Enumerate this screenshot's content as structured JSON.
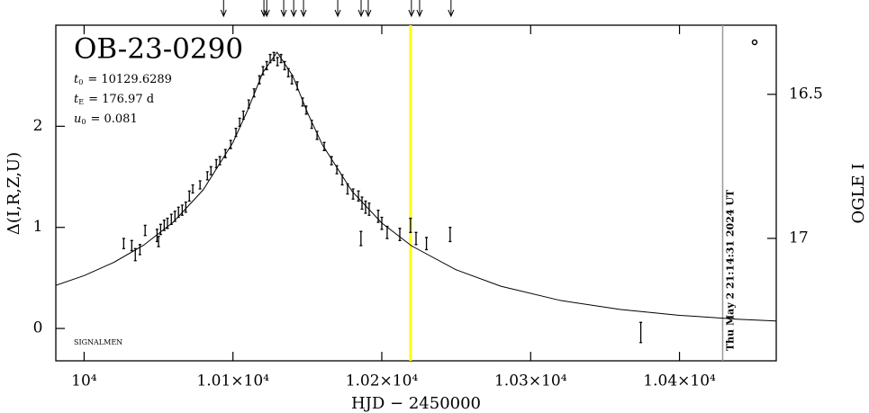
{
  "chart_data": {
    "type": "scatter",
    "title": "OB-23-0290",
    "x_label": "HJD − 2450000",
    "y_label": "Δ(I,R,Z,U)",
    "y2_label": "OGLE I",
    "corner_note": "SIGNALMEN",
    "timestamp": "Thu May  2 21:14:31 2024 UT",
    "params": [
      {
        "symbol": "t",
        "sub": "0",
        "text": "= 10129.6289"
      },
      {
        "symbol": "t",
        "sub": "E",
        "text": "= 176.97 d"
      },
      {
        "symbol": "u",
        "sub": "0",
        "text": "= 0.081"
      }
    ],
    "xlim": [
      9981,
      10465
    ],
    "ylim": [
      -0.32,
      3.0
    ],
    "y2lim": [
      17.425,
      16.26
    ],
    "xticks": [
      {
        "value": 10000,
        "label": "10⁴"
      },
      {
        "value": 10100,
        "label": "1.01×10⁴"
      },
      {
        "value": 10200,
        "label": "1.02×10⁴"
      },
      {
        "value": 10300,
        "label": "1.03×10⁴"
      },
      {
        "value": 10400,
        "label": "1.04×10⁴"
      }
    ],
    "yticks": [
      0,
      1,
      2
    ],
    "y2ticks": [
      16.5,
      17
    ],
    "arrows_x": [
      10093.7,
      10120.8,
      10122.7,
      10134.1,
      10140.8,
      10147.4,
      10170.4,
      10186.1,
      10190.9,
      10219.9,
      10225.4,
      10246.5
    ],
    "vlines": [
      {
        "x": 10219.3,
        "color": "#ffff00"
      },
      {
        "x": 10429,
        "color": "#999999"
      }
    ],
    "model": {
      "color": "#000000",
      "x": [
        9981,
        10000,
        10020,
        10040,
        10060,
        10080,
        10100,
        10110,
        10120,
        10129.6289,
        10140,
        10150,
        10160,
        10180,
        10200,
        10220,
        10250,
        10280,
        10320,
        10360,
        10400,
        10440,
        10465
      ],
      "values": [
        0.426,
        0.523,
        0.654,
        0.824,
        1.053,
        1.371,
        1.84,
        2.163,
        2.53,
        2.732,
        2.504,
        2.137,
        1.819,
        1.357,
        1.043,
        0.817,
        0.58,
        0.418,
        0.277,
        0.188,
        0.13,
        0.091,
        0.074
      ]
    },
    "series": [
      {
        "color": "#000000",
        "x": [
          10026.6,
          10032,
          10034.4,
          10037.5,
          10041,
          10049,
          10050,
          10051.4,
          10053.8,
          10056,
          10058.6,
          10061,
          10063.4,
          10065.9,
          10068.3,
          10070.7,
          10073,
          10077.9,
          10082.8,
          10085.2,
          10088.8,
          10091.2,
          10094.9,
          10098.5,
          10102,
          10104.5,
          10107,
          10110.6,
          10114.2,
          10117.8,
          10120.2,
          10122.7,
          10125,
          10127.5,
          10129.9,
          10132.3,
          10134.7,
          10137.2,
          10139.6,
          10143.2,
          10146.8,
          10149.2,
          10152.9,
          10156.5,
          10161.3,
          10166.2,
          10169.8,
          10173.4,
          10177,
          10180.7,
          10184.3,
          10186.7,
          10189.1,
          10191.5,
          10197.6,
          10200,
          10203.6,
          10212.1,
          10219.3,
          10223,
          10230,
          10245.9,
          10186,
          10374
        ],
        "values": [
          0.84,
          0.82,
          0.73,
          0.78,
          0.97,
          0.92,
          0.86,
          0.98,
          1.02,
          1.04,
          1.08,
          1.11,
          1.15,
          1.17,
          1.2,
          1.31,
          1.38,
          1.42,
          1.51,
          1.56,
          1.63,
          1.66,
          1.73,
          1.82,
          1.94,
          2.04,
          2.11,
          2.22,
          2.33,
          2.46,
          2.55,
          2.6,
          2.67,
          2.69,
          2.64,
          2.67,
          2.6,
          2.53,
          2.46,
          2.4,
          2.24,
          2.16,
          2.02,
          1.91,
          1.8,
          1.66,
          1.57,
          1.47,
          1.38,
          1.33,
          1.31,
          1.24,
          1.2,
          1.18,
          1.11,
          1.04,
          0.95,
          0.93,
          1.02,
          0.89,
          0.84,
          0.93,
          0.89,
          -0.04
        ],
        "errors": [
          0.05,
          0.05,
          0.06,
          0.05,
          0.05,
          0.06,
          0.05,
          0.05,
          0.05,
          0.05,
          0.05,
          0.05,
          0.05,
          0.05,
          0.05,
          0.05,
          0.04,
          0.04,
          0.04,
          0.04,
          0.04,
          0.04,
          0.04,
          0.04,
          0.04,
          0.04,
          0.04,
          0.04,
          0.04,
          0.04,
          0.04,
          0.04,
          0.04,
          0.04,
          0.04,
          0.04,
          0.04,
          0.04,
          0.04,
          0.04,
          0.04,
          0.04,
          0.04,
          0.04,
          0.04,
          0.04,
          0.04,
          0.05,
          0.05,
          0.05,
          0.05,
          0.06,
          0.06,
          0.06,
          0.06,
          0.06,
          0.06,
          0.06,
          0.07,
          0.06,
          0.06,
          0.07,
          0.07,
          0.1
        ]
      }
    ]
  }
}
